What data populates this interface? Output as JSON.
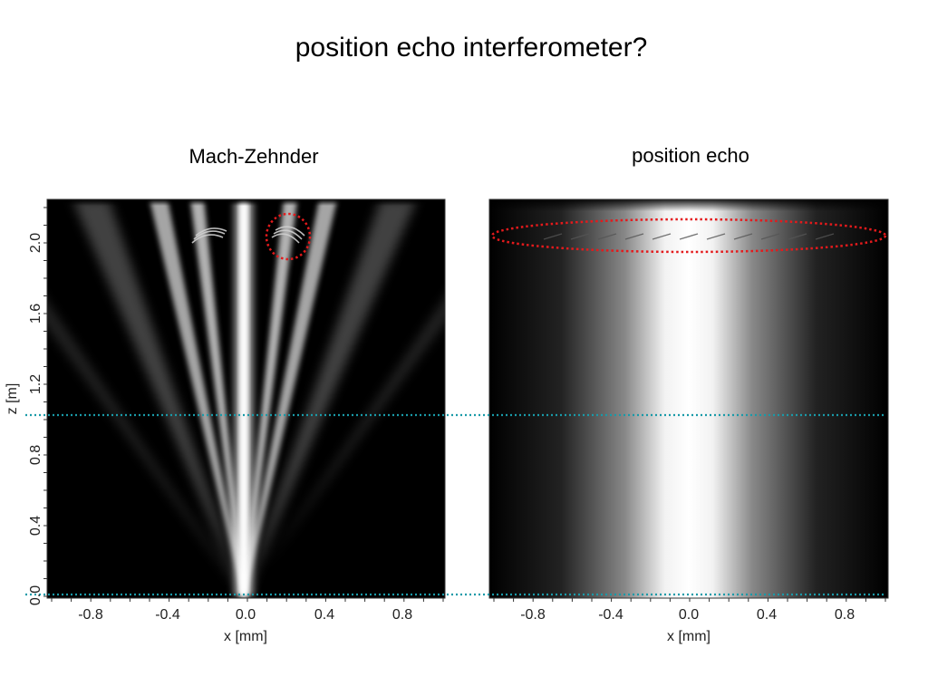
{
  "slide": {
    "title": "position echo interferometer?"
  },
  "panels": {
    "left": {
      "title": "Mach-Zehnder"
    },
    "right": {
      "title": "position echo"
    }
  },
  "axes": {
    "x_label": "x [mm]",
    "y_label": "z [m]",
    "x_ticks": [
      "-0.8",
      "-0.4",
      "0.0",
      "0.4",
      "0.8"
    ],
    "y_ticks": [
      "0.0",
      "0.4",
      "0.8",
      "1.2",
      "1.6",
      "2.0"
    ]
  },
  "colors": {
    "guide_lines": "#1a9aa8",
    "highlight": "#e41a1c",
    "plot_background": "#000000",
    "beam": "#ffffff"
  }
}
